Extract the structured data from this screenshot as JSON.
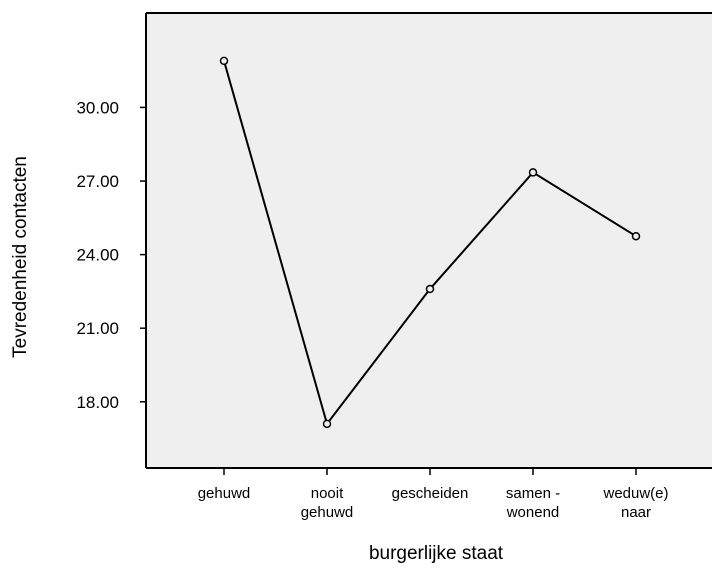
{
  "chart_data": {
    "type": "line",
    "categories": [
      "gehuwd",
      "nooit gehuwd",
      "gescheiden",
      "samen - wonend",
      "weduw(e) naar"
    ],
    "category_label_lines": [
      [
        "gehuwd"
      ],
      [
        "nooit",
        "gehuwd"
      ],
      [
        "gescheiden"
      ],
      [
        "samen -",
        "wonend"
      ],
      [
        "weduw(e)",
        "naar"
      ]
    ],
    "values": [
      31.9,
      17.1,
      22.6,
      27.35,
      24.75
    ],
    "y_ticks": [
      18,
      21,
      24,
      27,
      30
    ],
    "y_tick_labels": [
      "18.00",
      "21.00",
      "24.00",
      "27.00",
      "30.00"
    ],
    "ylim": [
      15.3,
      33.85
    ],
    "xlabel": "burgerlijke staat",
    "ylabel": "Tevredenheid contacten",
    "title": "",
    "grid": false,
    "markers": "open-circle",
    "colors": {
      "plot_background": "#efefef",
      "line": "#000000",
      "axis": "#000000"
    }
  }
}
